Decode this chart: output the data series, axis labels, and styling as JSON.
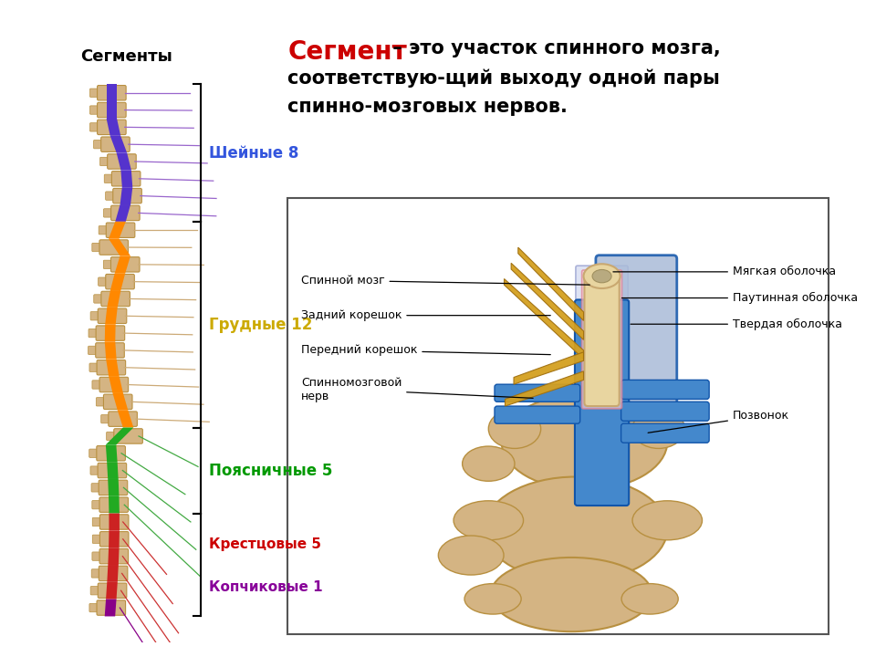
{
  "bg_color": "#ffffff",
  "title_word1": "Сегмент",
  "title_word1_color": "#cc0000",
  "title_rest": " – это участок спинного мозга,",
  "title_line2": "соответствую-щий выходу одной пары",
  "title_line3": "спинно-мозговых нервов.",
  "segments_label": "Сегменты",
  "cervical_label": "Шейные 8",
  "cervical_color": "#3355dd",
  "cervical_cord_color": "#5533cc",
  "thoracic_label": "Грудные 12",
  "thoracic_color": "#ccaa00",
  "thoracic_cord_color": "#ff8800",
  "lumbar_label": "Поясничные 5",
  "lumbar_color": "#009900",
  "lumbar_cord_color": "#22aa22",
  "sacral_label": "Крестцовые 5",
  "sacral_color": "#cc0000",
  "sacral_cord_color": "#cc2222",
  "coccygeal_label": "Копчиковые 1",
  "coccygeal_color": "#880099",
  "coccygeal_cord_color": "#880088",
  "spinal_cord_label": "Спинной мозг",
  "posterior_root_label": "Задний корешок",
  "anterior_root_label": "Передний корешок",
  "spinal_nerve_label": "Спинномозговой\nнерв",
  "pia_mater_label": "Мягкая оболочка",
  "arachnoid_label": "Паутинная оболочка",
  "dura_mater_label": "Твердая оболочка",
  "vertebra_label": "Позвонок",
  "vertebra_color": "#d4b483",
  "vertebra_edge": "#b89040",
  "blue_color": "#4488cc",
  "blue_dark": "#1155aa",
  "nerve_root_color": "#d4a020",
  "cord_color": "#e8d5a0",
  "dura_fill": "#b8c8e8",
  "arachnoid_fill": "#d0d8f0",
  "pia_fill": "#f0d0d8"
}
